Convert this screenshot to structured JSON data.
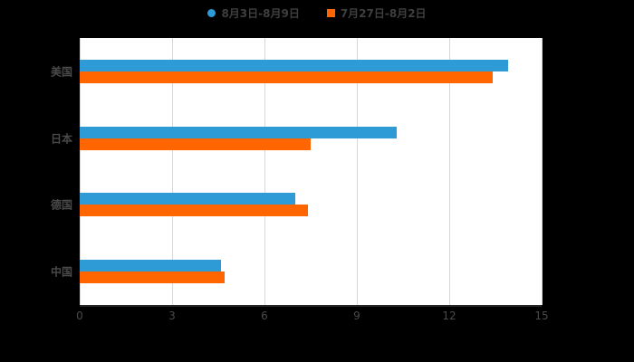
{
  "colors": {
    "page_background": "#000000",
    "plot_background": "#ffffff",
    "gridline": "#d8d8d8",
    "axis_text": "#4a4a4a",
    "legend_text": "#3f3f3f",
    "series_blue": "#2e9bd6",
    "series_orange": "#ff6600"
  },
  "chart_data": {
    "type": "bar",
    "orientation": "horizontal",
    "title": "",
    "xlabel": "",
    "ylabel": "",
    "categories": [
      "美国",
      "日本",
      "德国",
      "中国"
    ],
    "series": [
      {
        "name": "8月3日-8月9日",
        "color": "#2e9bd6",
        "marker": "circle",
        "values": [
          13.9,
          10.3,
          7.0,
          4.6
        ]
      },
      {
        "name": "7月27日-8月2日",
        "color": "#ff6600",
        "marker": "square",
        "values": [
          13.4,
          7.5,
          7.4,
          4.7
        ]
      }
    ],
    "x_ticks": [
      0,
      3,
      6,
      9,
      12,
      15
    ],
    "xlim": [
      0,
      15
    ],
    "grid": true,
    "legend_position": "top"
  }
}
